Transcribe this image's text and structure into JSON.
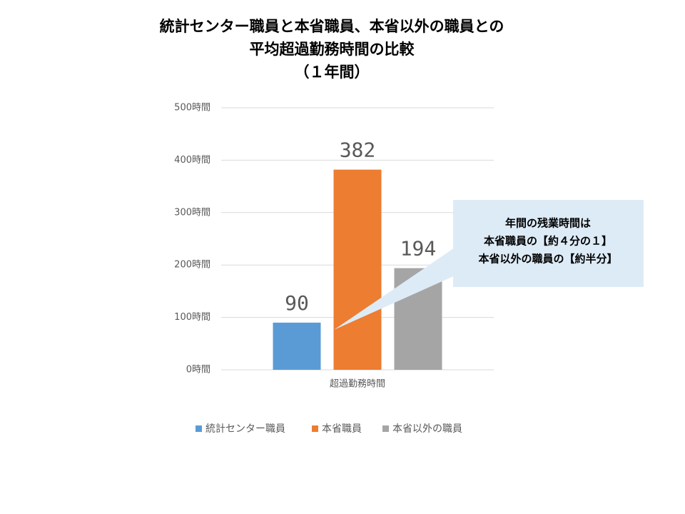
{
  "chart_data": {
    "type": "bar",
    "title": [
      "統計センター職員と本省職員、本省以外の職員との",
      "平均超過勤務時間の比較",
      "（１年間）"
    ],
    "categories": [
      "超過勤務時間"
    ],
    "series": [
      {
        "name": "統計センター職員",
        "color": "#5b9bd5",
        "values": [
          90
        ]
      },
      {
        "name": "本省職員",
        "color": "#ed7d31",
        "values": [
          382
        ]
      },
      {
        "name": "本省以外の職員",
        "color": "#a5a5a5",
        "values": [
          194
        ]
      }
    ],
    "ylim": [
      0,
      500
    ],
    "yticks": [
      {
        "value": 0,
        "label": "0時間"
      },
      {
        "value": 100,
        "label": "100時間"
      },
      {
        "value": 200,
        "label": "200時間"
      },
      {
        "value": 300,
        "label": "300時間"
      },
      {
        "value": 400,
        "label": "400時間"
      },
      {
        "value": 500,
        "label": "500時間"
      }
    ],
    "grid": true,
    "legend": "bottom",
    "annotation": [
      "年間の残業時間は",
      "本省職員の【約４分の１】",
      "本省以外の職員の【約半分】"
    ]
  }
}
